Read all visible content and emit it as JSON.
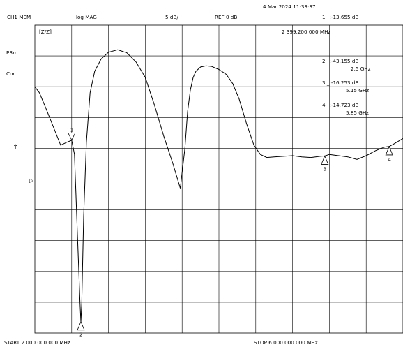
{
  "header": {
    "timestamp": "4 Mar 2024  11:33:37",
    "channel": "CH1 MEM",
    "format": "log MAG",
    "scale": "5 dB/",
    "reference": "REF 0 dB",
    "marker1_readout": "1 _:-13.655 dB",
    "marker1_freq": "2 399.200 000 MHz"
  },
  "side_labels": {
    "box_label": "[Z/Z]",
    "prm": "PRm",
    "cor": "Cor",
    "arrow": "↑",
    "ref_pointer": "▷"
  },
  "marker_table": [
    {
      "label": "2 _:-43.155 dB",
      "freq": "2.5 GHz"
    },
    {
      "label": "3 _:-16.253 dB",
      "freq": "5.15 GHz"
    },
    {
      "label": "4 _:-14.723 dB",
      "freq": "5.85 GHz"
    }
  ],
  "footer": {
    "start": "START 2 000.000 000 MHz",
    "stop": "STOP 6 000.000 000 MHz"
  },
  "markers": [
    {
      "id": "1",
      "freq_ghz": 2.4,
      "db": -13.655,
      "label_side": "above"
    },
    {
      "id": "2",
      "freq_ghz": 2.5,
      "db": -43.155,
      "label_side": "below"
    },
    {
      "id": "3",
      "freq_ghz": 5.15,
      "db": -16.253,
      "label_side": "below"
    },
    {
      "id": "4",
      "freq_ghz": 5.85,
      "db": -14.723,
      "label_side": "below"
    }
  ],
  "chart_data": {
    "type": "line",
    "xlim": [
      2.0,
      6.0
    ],
    "ylim": [
      -45,
      5
    ],
    "grid": true,
    "series": [
      {
        "x": [
          2.0,
          2.05,
          2.12,
          2.2,
          2.28,
          2.35,
          2.4,
          2.43,
          2.46,
          2.49,
          2.5,
          2.51,
          2.53,
          2.56,
          2.6,
          2.65,
          2.72,
          2.8,
          2.9,
          3.0,
          3.1,
          3.2,
          3.3,
          3.4,
          3.5,
          3.58,
          3.63,
          3.66,
          3.69,
          3.72,
          3.75,
          3.8,
          3.86,
          3.92,
          4.0,
          4.08,
          4.15,
          4.22,
          4.3,
          4.38,
          4.45,
          4.52,
          4.6,
          4.7,
          4.8,
          4.9,
          5.0,
          5.1,
          5.15,
          5.2,
          5.3,
          5.4,
          5.5,
          5.6,
          5.7,
          5.8,
          5.85,
          5.9,
          6.0
        ],
        "y": [
          -5.0,
          -6.0,
          -8.5,
          -11.5,
          -14.5,
          -14.0,
          -13.7,
          -16.0,
          -28.0,
          -40.0,
          -43.2,
          -40.0,
          -26.0,
          -14.0,
          -6.0,
          -2.5,
          -0.5,
          0.6,
          1.0,
          0.5,
          -1.0,
          -3.5,
          -8.0,
          -13.0,
          -17.5,
          -21.5,
          -15.0,
          -9.0,
          -5.5,
          -3.5,
          -2.5,
          -1.8,
          -1.6,
          -1.7,
          -2.2,
          -3.0,
          -4.5,
          -7.0,
          -11.0,
          -14.5,
          -16.0,
          -16.5,
          -16.4,
          -16.3,
          -16.2,
          -16.4,
          -16.5,
          -16.3,
          -16.25,
          -16.0,
          -16.2,
          -16.4,
          -16.8,
          -16.2,
          -15.4,
          -14.8,
          -14.7,
          -14.3,
          -13.4
        ]
      }
    ]
  }
}
